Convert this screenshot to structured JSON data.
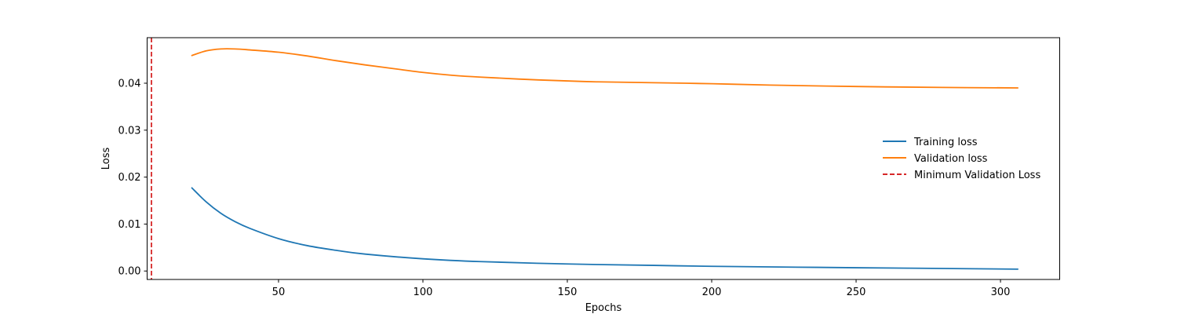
{
  "chart_data": {
    "type": "line",
    "title": "",
    "xlabel": "Epochs",
    "ylabel": "Loss",
    "xlim": [
      4.5,
      320.5
    ],
    "ylim": [
      -0.0018,
      0.0497
    ],
    "xticks": [
      50,
      100,
      150,
      200,
      250,
      300
    ],
    "yticks": [
      0.0,
      0.01,
      0.02,
      0.03,
      0.04
    ],
    "ytick_labels": [
      "0.00",
      "0.01",
      "0.02",
      "0.03",
      "0.04"
    ],
    "grid": false,
    "legend_position": "center-right",
    "series": [
      {
        "name": "Training loss",
        "color": "#1f77b4",
        "style": "solid",
        "x": [
          20,
          25,
          30,
          35,
          40,
          50,
          60,
          70,
          80,
          100,
          120,
          150,
          180,
          200,
          250,
          306
        ],
        "y": [
          0.0177,
          0.0147,
          0.0123,
          0.0105,
          0.0091,
          0.0069,
          0.0054,
          0.0044,
          0.0036,
          0.0026,
          0.002,
          0.0015,
          0.0012,
          0.001,
          0.0007,
          0.0004
        ]
      },
      {
        "name": "Validation loss",
        "color": "#ff7f0e",
        "style": "solid",
        "x": [
          20,
          25,
          30,
          35,
          40,
          50,
          60,
          70,
          80,
          90,
          100,
          110,
          120,
          140,
          160,
          180,
          200,
          220,
          250,
          280,
          306
        ],
        "y": [
          0.0459,
          0.0469,
          0.0473,
          0.0473,
          0.0471,
          0.0466,
          0.0458,
          0.0448,
          0.0439,
          0.0431,
          0.0423,
          0.0417,
          0.0413,
          0.0407,
          0.0403,
          0.0401,
          0.0399,
          0.0396,
          0.0393,
          0.0391,
          0.039
        ]
      }
    ],
    "vlines": [
      {
        "name": "Minimum Validation Loss",
        "x": 6,
        "color": "#d62728",
        "style": "dashed"
      }
    ]
  }
}
